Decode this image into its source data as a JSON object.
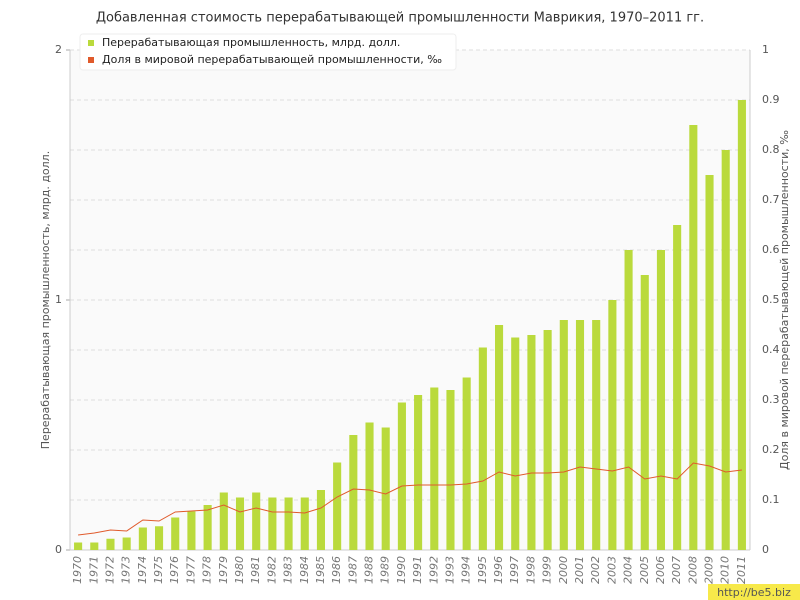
{
  "chart_data": {
    "type": "bar",
    "title": "Добавленная стоимость перерабатывающей промышленности Маврикия, 1970–2011 гг.",
    "y_label": "Перерабатывающая промышленность, млрд. долл.",
    "y2_label": "Доля в мировой перерабатывающей промышленности, ‰",
    "categories": [
      "1970",
      "1971",
      "1972",
      "1973",
      "1974",
      "1975",
      "1976",
      "1977",
      "1978",
      "1979",
      "1980",
      "1981",
      "1982",
      "1983",
      "1984",
      "1985",
      "1986",
      "1987",
      "1988",
      "1989",
      "1990",
      "1991",
      "1992",
      "1993",
      "1994",
      "1995",
      "1996",
      "1997",
      "1998",
      "1999",
      "2000",
      "2001",
      "2002",
      "2003",
      "2004",
      "2005",
      "2006",
      "2007",
      "2008",
      "2009",
      "2010",
      "2011"
    ],
    "series": [
      {
        "name": "Перерабатывающая промышленность, млрд. долл.",
        "type": "bar",
        "color": "#bada3c",
        "values": [
          0.03,
          0.03,
          0.045,
          0.05,
          0.09,
          0.095,
          0.13,
          0.155,
          0.18,
          0.23,
          0.21,
          0.23,
          0.21,
          0.21,
          0.21,
          0.24,
          0.35,
          0.46,
          0.51,
          0.49,
          0.59,
          0.62,
          0.65,
          0.64,
          0.69,
          0.81,
          0.9,
          0.85,
          0.86,
          0.88,
          0.92,
          0.92,
          0.92,
          1.0,
          1.2,
          1.1,
          1.2,
          1.3,
          1.7,
          1.5,
          1.6,
          1.8
        ]
      },
      {
        "name": "Доля в мировой перерабатывающей промышленности, ‰",
        "type": "line",
        "axis": "y2",
        "color": "#e05a2b",
        "values": [
          0.03,
          0.034,
          0.04,
          0.038,
          0.06,
          0.058,
          0.076,
          0.078,
          0.08,
          0.09,
          0.076,
          0.084,
          0.076,
          0.076,
          0.074,
          0.084,
          0.106,
          0.122,
          0.12,
          0.112,
          0.128,
          0.13,
          0.13,
          0.13,
          0.132,
          0.138,
          0.156,
          0.148,
          0.154,
          0.154,
          0.156,
          0.166,
          0.162,
          0.158,
          0.166,
          0.142,
          0.148,
          0.142,
          0.174,
          0.168,
          0.156,
          0.16
        ]
      }
    ],
    "ylim": [
      0,
      2
    ],
    "yticks": [
      0,
      1,
      2
    ],
    "y2lim": [
      0,
      1
    ],
    "y2ticks": [
      0,
      0.1,
      0.2,
      0.3,
      0.4,
      0.5,
      0.6,
      0.7,
      0.8,
      0.9,
      1
    ],
    "grid": true,
    "legend": "top-left",
    "watermark": "http://be5.biz"
  }
}
